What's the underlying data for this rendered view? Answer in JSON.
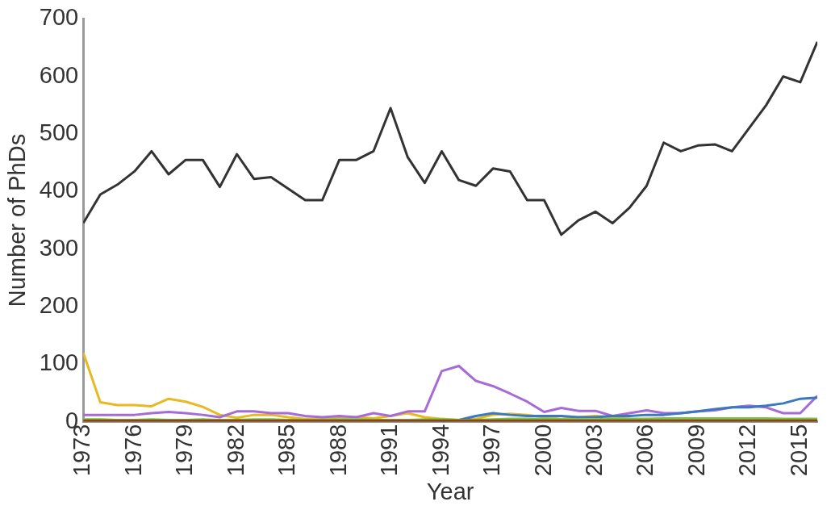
{
  "chart_data": {
    "type": "line",
    "xlabel": "Year",
    "ylabel": "Number of PhDs",
    "x": [
      1973,
      1974,
      1975,
      1976,
      1977,
      1978,
      1979,
      1980,
      1981,
      1982,
      1983,
      1984,
      1985,
      1986,
      1987,
      1988,
      1989,
      1990,
      1991,
      1992,
      1993,
      1994,
      1995,
      1996,
      1997,
      1998,
      1999,
      2000,
      2001,
      2002,
      2003,
      2004,
      2005,
      2006,
      2007,
      2008,
      2009,
      2010,
      2011,
      2012,
      2013,
      2014,
      2015,
      2016
    ],
    "series": [
      {
        "color": "#333333",
        "values": [
          345,
          395,
          412,
          435,
          470,
          430,
          455,
          455,
          408,
          465,
          422,
          425,
          405,
          385,
          385,
          455,
          455,
          470,
          545,
          460,
          415,
          470,
          420,
          410,
          440,
          435,
          385,
          385,
          325,
          350,
          365,
          345,
          372,
          410,
          485,
          470,
          480,
          482,
          470,
          510,
          550,
          600,
          590,
          660
        ]
      },
      {
        "color": "#e8b923",
        "values": [
          120,
          34,
          29,
          29,
          27,
          40,
          35,
          26,
          12,
          7,
          12,
          12,
          8,
          5,
          5,
          8,
          8,
          6,
          10,
          15,
          8,
          5,
          3,
          5,
          12,
          14,
          12,
          8,
          5,
          8,
          10,
          8,
          5,
          null,
          null,
          null,
          null,
          null,
          null,
          null,
          null,
          null,
          null,
          null
        ]
      },
      {
        "color": "#a66bd6",
        "values": [
          12,
          12,
          12,
          12,
          15,
          17,
          15,
          12,
          8,
          18,
          18,
          15,
          15,
          10,
          8,
          10,
          8,
          15,
          10,
          18,
          18,
          88,
          97,
          71,
          62,
          49,
          35,
          17,
          24,
          19,
          19,
          10,
          15,
          20,
          15,
          15,
          18,
          20,
          25,
          28,
          25,
          15,
          15,
          45
        ]
      },
      {
        "color": "#3a78c0",
        "values": [
          null,
          null,
          null,
          null,
          null,
          null,
          null,
          null,
          null,
          null,
          null,
          null,
          null,
          null,
          null,
          null,
          null,
          null,
          null,
          null,
          null,
          2,
          3,
          10,
          15,
          12,
          10,
          10,
          10,
          8,
          8,
          10,
          10,
          12,
          12,
          15,
          18,
          22,
          25,
          25,
          28,
          32,
          40,
          42
        ]
      },
      {
        "color": "#7cc24a",
        "values": [
          4,
          4,
          3,
          3,
          4,
          3,
          3,
          4,
          3,
          3,
          4,
          4,
          3,
          3,
          3,
          4,
          4,
          3,
          3,
          3,
          4,
          4,
          3,
          3,
          4,
          5,
          5,
          5,
          4,
          4,
          4,
          5,
          5,
          5,
          6,
          6,
          6,
          6,
          6,
          6,
          6,
          5,
          5,
          5
        ]
      },
      {
        "color": "#8b4513",
        "values": [
          2,
          2,
          2,
          2,
          2,
          2,
          2,
          2,
          2,
          2,
          2,
          2,
          2,
          2,
          2,
          2,
          2,
          2,
          2,
          2,
          2,
          2,
          2,
          2,
          2,
          2,
          2,
          2,
          2,
          2,
          2,
          2,
          2,
          2,
          2,
          2,
          2,
          2,
          2,
          2,
          2,
          2,
          2,
          2
        ]
      }
    ],
    "xlim": [
      1973,
      2016
    ],
    "xticks": [
      1973,
      1976,
      1979,
      1982,
      1985,
      1988,
      1991,
      1994,
      1997,
      2000,
      2003,
      2006,
      2009,
      2012,
      2015
    ],
    "ylim": [
      0,
      700
    ],
    "yticks": [
      0,
      100,
      200,
      300,
      400,
      500,
      600,
      700
    ],
    "grid": false,
    "legend": false,
    "marker": "none",
    "line_style": "solid"
  }
}
